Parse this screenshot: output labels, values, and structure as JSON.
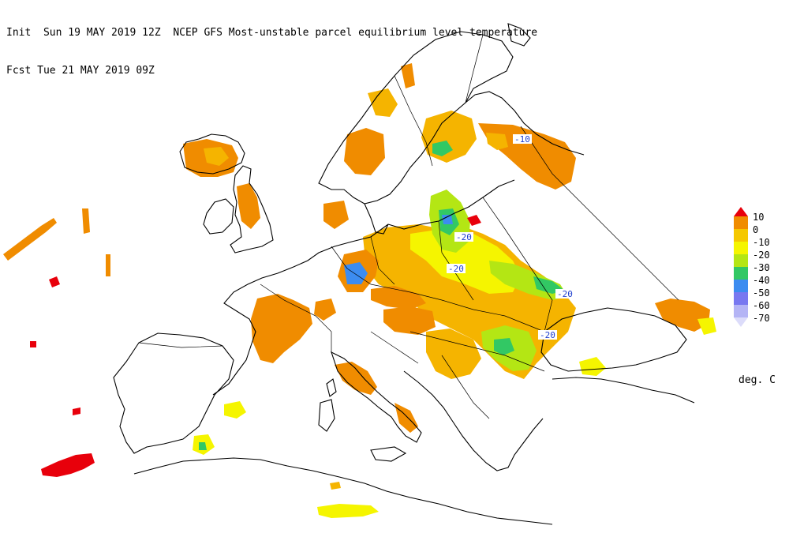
{
  "header": {
    "line1": "Init  Sun 19 MAY 2019 12Z  NCEP GFS Most-unstable parcel equilibrium level temperature",
    "line2": "Fcst Tue 21 MAY 2019 09Z"
  },
  "legend": {
    "levels": [
      {
        "label": "10",
        "color": "#e8000b"
      },
      {
        "label": "0",
        "color": "#f08c00"
      },
      {
        "label": "-10",
        "color": "#f5c800"
      },
      {
        "label": "-20",
        "color": "#f5f500"
      },
      {
        "label": "-30",
        "color": "#b4e614"
      },
      {
        "label": "-40",
        "color": "#32c864"
      },
      {
        "label": "-50",
        "color": "#3c8cf0"
      },
      {
        "label": "-60",
        "color": "#7878f0"
      },
      {
        "label": "-70",
        "color": "#b4b4f5"
      }
    ],
    "bottom_color": "#dcdcfa",
    "units": "deg. C"
  },
  "contour_labels": [
    "-10",
    "-20",
    "-20",
    "-20",
    "-20"
  ],
  "colors": {
    "coast": "#000000",
    "orange": "#f08c00",
    "amber": "#f5b400",
    "yellow": "#f5f500",
    "lime": "#b4e614",
    "green": "#32c864",
    "blue": "#3c8cf0",
    "violet": "#7878f0",
    "red": "#e8000b"
  }
}
